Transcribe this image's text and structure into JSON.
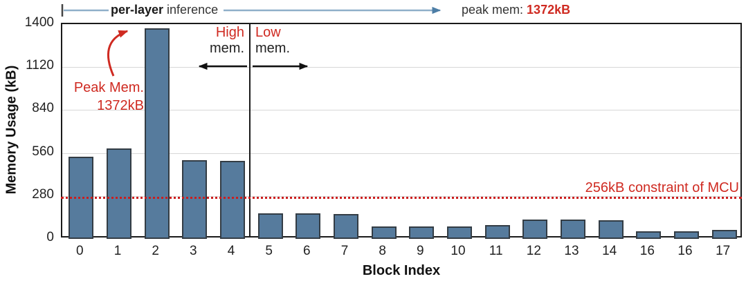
{
  "chart_data": {
    "type": "bar",
    "title": "",
    "xlabel": "Block Index",
    "ylabel": "Memory Usage (kB)",
    "ylim": [
      0,
      1400
    ],
    "yticks": [
      0,
      280,
      560,
      840,
      1120,
      1400
    ],
    "categories": [
      "0",
      "1",
      "2",
      "3",
      "4",
      "5",
      "6",
      "7",
      "8",
      "9",
      "10",
      "11",
      "12",
      "13",
      "14",
      "16",
      "16",
      "17"
    ],
    "values": [
      535,
      590,
      1372,
      515,
      510,
      165,
      165,
      160,
      80,
      80,
      80,
      90,
      125,
      125,
      120,
      50,
      50,
      60
    ],
    "grid": true,
    "legend": false,
    "divider_after_index": 4,
    "constraint_line": {
      "value_kb": 256,
      "label": "256kB constraint of MCU"
    },
    "annotations": {
      "top_left": {
        "bold": "per-layer",
        "rest": " inference"
      },
      "top_right": {
        "label": "peak mem: ",
        "value": "1372kB"
      },
      "peak": {
        "line1": "Peak Mem.",
        "line2": "1372kB"
      },
      "high_region": {
        "line1": "High",
        "line2": "mem."
      },
      "low_region": {
        "line1": "Low",
        "line2": "mem."
      }
    }
  },
  "colors": {
    "bar_fill": "#567b9d",
    "bar_border": "#333c44",
    "red": "#cf2a21",
    "dotted_line": "#cc1d1d",
    "arrow_blue_line": "#8fafc9",
    "arrow_blue_head": "#4d7ea6",
    "arrow_black": "#111111",
    "grid": "#d7d7d7",
    "frame": "#1a1a1a"
  }
}
